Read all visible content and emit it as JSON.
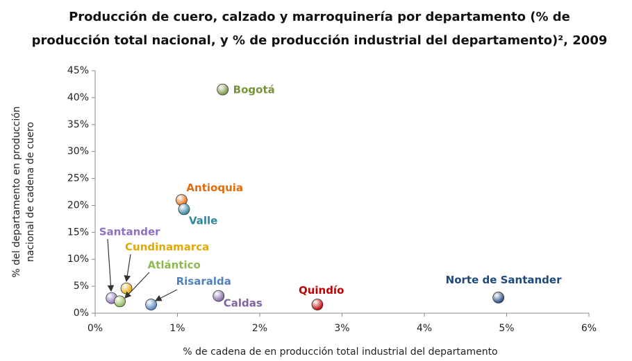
{
  "chart_data": {
    "type": "scatter",
    "title": "Producción de cuero, calzado y marroquinería por departamento  (% de producción total nacional, y % de producción industrial del departamento)², 2009",
    "x_label": "% de cadena de en producción total industrial del departamento",
    "y_label": [
      "% del departamento en producción",
      "nacional de cadena de cuero"
    ],
    "xlim": [
      0,
      6
    ],
    "xticks": [
      {
        "value": 0,
        "label": "0%"
      },
      {
        "value": 1,
        "label": "1%"
      },
      {
        "value": 2,
        "label": "2%"
      },
      {
        "value": 3,
        "label": "3%"
      },
      {
        "value": 4,
        "label": "4%"
      },
      {
        "value": 5,
        "label": "5%"
      },
      {
        "value": 6,
        "label": "6%"
      }
    ],
    "ylim": [
      0,
      45
    ],
    "yticks": [
      {
        "value": 0,
        "label": "0%"
      },
      {
        "value": 5,
        "label": "5%"
      },
      {
        "value": 10,
        "label": "10%"
      },
      {
        "value": 15,
        "label": "15%"
      },
      {
        "value": 20,
        "label": "20%"
      },
      {
        "value": 25,
        "label": "25%"
      },
      {
        "value": 30,
        "label": "30%"
      },
      {
        "value": 35,
        "label": "35%"
      },
      {
        "value": 40,
        "label": "40%"
      },
      {
        "value": 45,
        "label": "45%"
      }
    ],
    "points": [
      {
        "name": "Bogotá",
        "x": 1.55,
        "y": 41.5,
        "color": "#77933c"
      },
      {
        "name": "Antioquia",
        "x": 1.05,
        "y": 21,
        "color": "#e46c0a"
      },
      {
        "name": "Valle",
        "x": 1.08,
        "y": 19.3,
        "color": "#31859c"
      },
      {
        "name": "Santander",
        "x": 0.2,
        "y": 2.8,
        "color": "#8e6fc1"
      },
      {
        "name": "Cundinamarca",
        "x": 0.38,
        "y": 4.6,
        "color": "#e6a800"
      },
      {
        "name": "Atlántico",
        "x": 0.3,
        "y": 2.2,
        "color": "#8cba50"
      },
      {
        "name": "Risaralda",
        "x": 0.68,
        "y": 1.6,
        "color": "#4f81bd"
      },
      {
        "name": "Caldas",
        "x": 1.5,
        "y": 3.2,
        "color": "#8064a2"
      },
      {
        "name": "Quindío",
        "x": 2.7,
        "y": 1.6,
        "color": "#c00000"
      },
      {
        "name": "Norte de Santander",
        "x": 4.9,
        "y": 2.9,
        "color": "#1f497d"
      }
    ]
  }
}
